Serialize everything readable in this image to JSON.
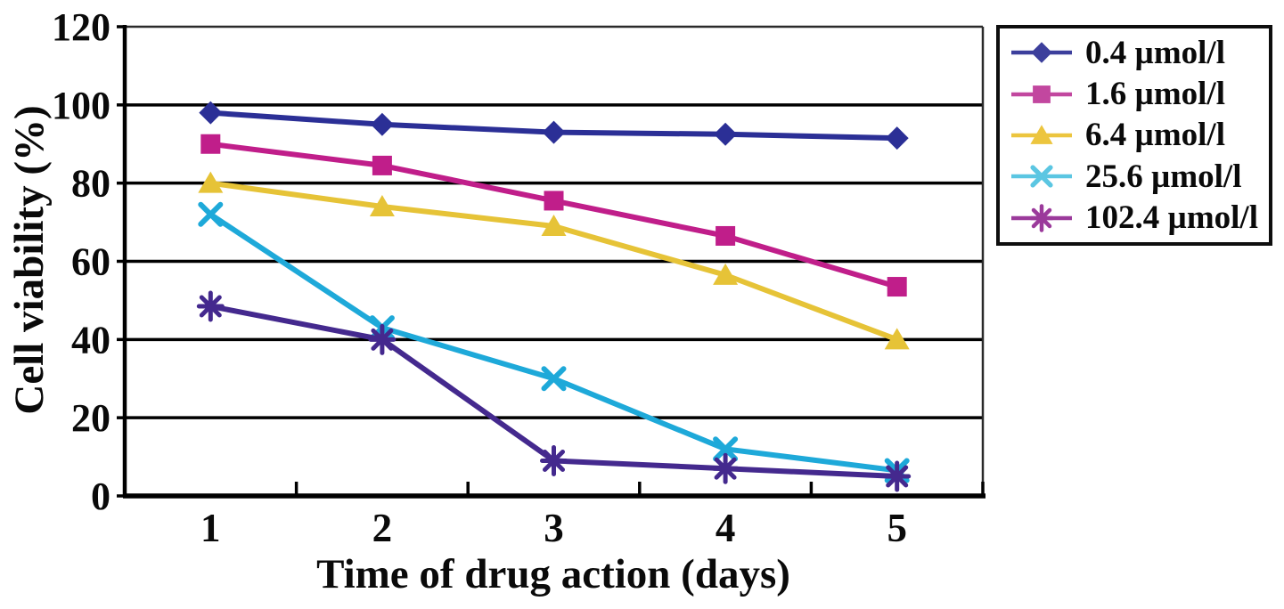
{
  "chart_data": {
    "type": "line",
    "title": "",
    "xlabel": "Time of drug action (days)",
    "ylabel": "Cell viability (%)",
    "categories": [
      "1",
      "2",
      "3",
      "4",
      "5"
    ],
    "yticks": [
      0,
      20,
      40,
      60,
      80,
      100,
      120
    ],
    "ylim": [
      0,
      120
    ],
    "grid": true,
    "gridline_color": "#000000",
    "axis_color": "#000000",
    "legend_position": "outside-top-right",
    "series": [
      {
        "name": "0.4 µmol/l",
        "marker": "diamond",
        "color": "#2b2f96",
        "legend_color": "#3c3f9c",
        "values": [
          98,
          95,
          93,
          92.5,
          91.5
        ]
      },
      {
        "name": "1.6 µmol/l",
        "marker": "square",
        "color": "#c01e8a",
        "legend_color": "#c2479f",
        "values": [
          90,
          84.5,
          75.5,
          66.5,
          53.5
        ]
      },
      {
        "name": "6.4 µmol/l",
        "marker": "triangle",
        "color": "#e6c337",
        "legend_color": "#ecc53e",
        "values": [
          80,
          74,
          69,
          56.5,
          40
        ]
      },
      {
        "name": "25.6 µmol/l",
        "marker": "x",
        "color": "#1ea9d9",
        "legend_color": "#5bc6e2",
        "values": [
          72,
          43,
          30,
          12,
          6.5
        ]
      },
      {
        "name": "102.4 µmol/l",
        "marker": "asterisk",
        "color": "#44298e",
        "legend_color": "#9b3a9b",
        "values": [
          48.5,
          40,
          9,
          7,
          5
        ]
      }
    ]
  }
}
